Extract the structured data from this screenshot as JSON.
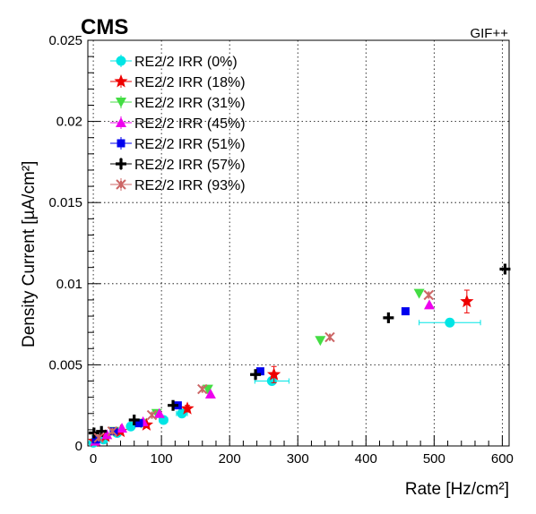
{
  "header": {
    "brand": "CMS",
    "facility": "GIF++"
  },
  "chart_data": {
    "type": "scatter",
    "title": "",
    "xlabel": "Rate [Hz/cm²]",
    "ylabel": "Density Current [µA/cm²]",
    "xlim": [
      -8,
      610
    ],
    "ylim": [
      0,
      0.025
    ],
    "xticks": [
      0,
      100,
      200,
      300,
      400,
      500,
      600
    ],
    "yticks": [
      0,
      0.005,
      0.01,
      0.015,
      0.02,
      0.025
    ],
    "ytick_labels": [
      "0",
      "0.005",
      "0.01",
      "0.015",
      "0.02",
      "0.025"
    ],
    "grid": true,
    "legend_position": "top-left",
    "series": [
      {
        "name": "RE2/2 IRR (0%)",
        "marker": "circle",
        "color": "#00e5e5",
        "points": [
          [
            0,
            0.0002
          ],
          [
            15,
            0.0004
          ],
          [
            35,
            0.0008
          ],
          [
            55,
            0.0012
          ],
          [
            103,
            0.0016
          ],
          [
            130,
            0.002
          ],
          [
            262,
            0.004
          ],
          [
            523,
            0.0076
          ]
        ],
        "xerr": [
          2,
          2,
          3,
          4,
          6,
          8,
          25,
          45
        ]
      },
      {
        "name": "RE2/2 IRR (18%)",
        "marker": "star",
        "color": "#ee0000",
        "points": [
          [
            2,
            0.0003
          ],
          [
            18,
            0.0006
          ],
          [
            40,
            0.0009
          ],
          [
            78,
            0.0013
          ],
          [
            138,
            0.0023
          ],
          [
            265,
            0.0044
          ],
          [
            548,
            0.0089
          ]
        ],
        "yerr": [
          0,
          0,
          0,
          0,
          0.0002,
          0.0005,
          0.0007
        ]
      },
      {
        "name": "RE2/2 IRR (31%)",
        "marker": "triangle-down",
        "color": "#44dd44",
        "points": [
          [
            5,
            0.0004
          ],
          [
            30,
            0.0009
          ],
          [
            70,
            0.0014
          ],
          [
            93,
            0.002
          ],
          [
            168,
            0.0035
          ],
          [
            333,
            0.0065
          ],
          [
            478,
            0.0094
          ]
        ]
      },
      {
        "name": "RE2/2 IRR (45%)",
        "marker": "triangle-up",
        "color": "#ee00ee",
        "points": [
          [
            3,
            0.0003
          ],
          [
            20,
            0.0007
          ],
          [
            42,
            0.0011
          ],
          [
            73,
            0.0015
          ],
          [
            97,
            0.002
          ],
          [
            172,
            0.0032
          ],
          [
            493,
            0.0087
          ]
        ]
      },
      {
        "name": "RE2/2 IRR (51%)",
        "marker": "square",
        "color": "#0000ee",
        "points": [
          [
            4,
            0.0004
          ],
          [
            30,
            0.0009
          ],
          [
            67,
            0.0014
          ],
          [
            124,
            0.0025
          ],
          [
            245,
            0.0046
          ],
          [
            458,
            0.0083
          ]
        ]
      },
      {
        "name": "RE2/2 IRR (57%)",
        "marker": "cross",
        "color": "#000000",
        "points": [
          [
            1,
            0.0008
          ],
          [
            12,
            0.0009
          ],
          [
            60,
            0.0016
          ],
          [
            117,
            0.0025
          ],
          [
            238,
            0.0044
          ],
          [
            433,
            0.0079
          ],
          [
            604,
            0.0109
          ]
        ]
      },
      {
        "name": "RE2/2 IRR (93%)",
        "marker": "x-star",
        "color": "#cc6666",
        "points": [
          [
            8,
            0.0005
          ],
          [
            28,
            0.0009
          ],
          [
            86,
            0.0019
          ],
          [
            160,
            0.0035
          ],
          [
            347,
            0.0067
          ],
          [
            492,
            0.0093
          ]
        ]
      }
    ]
  }
}
